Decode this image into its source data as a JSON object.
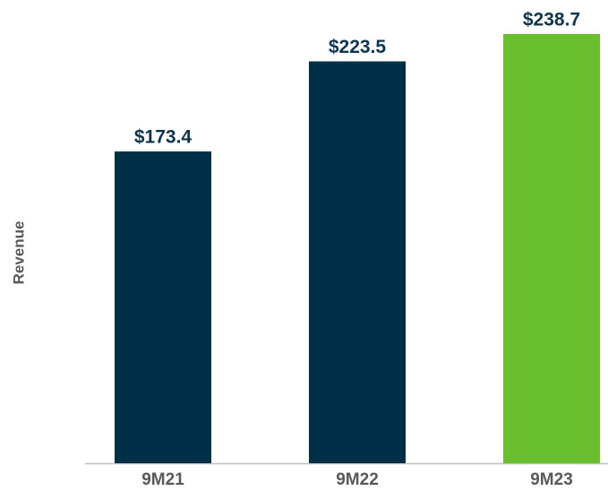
{
  "chart_data": {
    "type": "bar",
    "y_label": "Revenue",
    "categories": [
      "9M21",
      "9M22",
      "9M23"
    ],
    "values": [
      173.4,
      223.5,
      238.7
    ],
    "value_labels": [
      "$173.4",
      "$223.5",
      "$238.7"
    ],
    "colors": [
      "#003047",
      "#003047",
      "#6abf2e"
    ]
  }
}
